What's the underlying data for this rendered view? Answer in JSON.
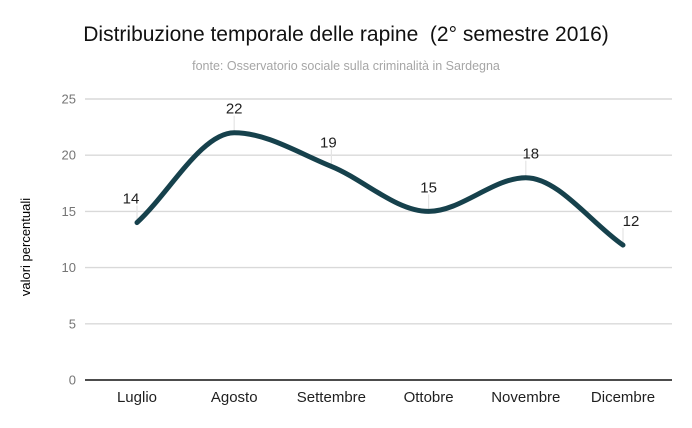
{
  "chart_data": {
    "type": "line",
    "title": "Distribuzione temporale delle rapine  (2° semestre 2016)",
    "subtitle": "fonte: Osservatorio sociale sulla criminalità in Sardegna",
    "categories": [
      "Luglio",
      "Agosto",
      "Settembre",
      "Ottobre",
      "Novembre",
      "Dicembre"
    ],
    "values": [
      14,
      22,
      19,
      15,
      18,
      12
    ],
    "xlabel": "",
    "ylabel": "valori percentuali",
    "ylim": [
      0,
      25
    ],
    "yticks": [
      0,
      5,
      10,
      15,
      20,
      25
    ],
    "grid": "horizontal-only",
    "legend": "none",
    "smooth": true,
    "data_labels_visible": true,
    "colors": {
      "line": "#16414C",
      "grid": "#d9d9d9",
      "axis": "#333333",
      "callout": "#e4e4e4",
      "tick_label": "#757575",
      "data_label": "#1f1f1f",
      "category_label": "#1f1f1f",
      "axis_title": "#333333",
      "title": "#111111",
      "subtitle": "#a6a6a6",
      "background": "#ffffff"
    }
  }
}
